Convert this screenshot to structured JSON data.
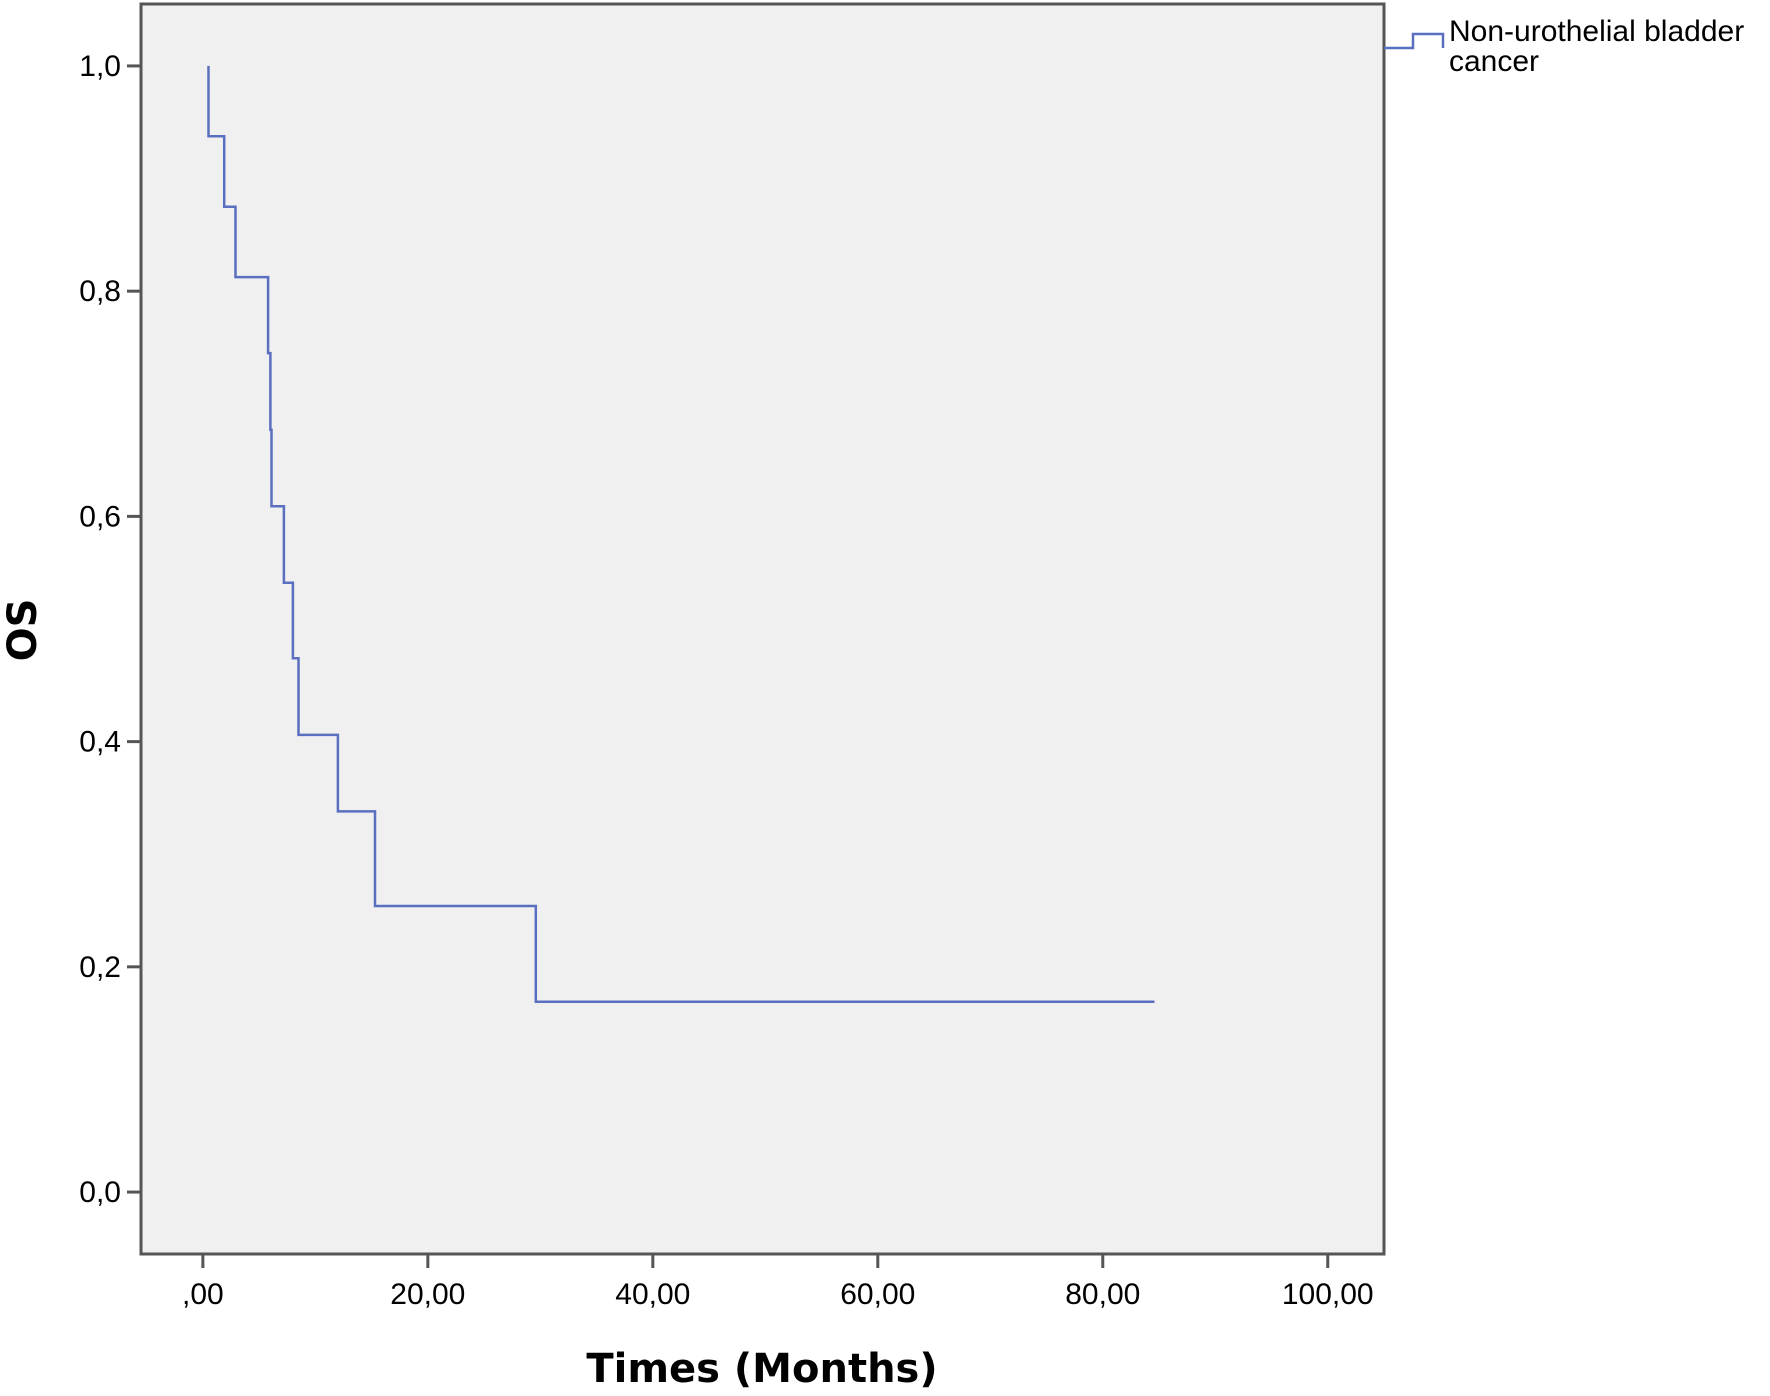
{
  "chart_data": {
    "type": "line",
    "subtype": "kaplan-meier-step",
    "xlabel": "Times (Months)",
    "ylabel": "OS",
    "xlim": [
      -5.5,
      105
    ],
    "ylim": [
      -0.055,
      1.055
    ],
    "x_ticks": [
      0,
      20,
      40,
      60,
      80,
      100
    ],
    "x_tick_labels": [
      ",00",
      "20,00",
      "40,00",
      "60,00",
      "80,00",
      "100,00"
    ],
    "y_ticks": [
      0,
      0.2,
      0.4,
      0.6,
      0.8,
      1.0
    ],
    "y_tick_labels": [
      "0,0",
      "0,2",
      "0,4",
      "0,6",
      "0,8",
      "1,0"
    ],
    "grid": false,
    "legend_position": "top-right, outside plot",
    "plot_background": "#f0f0f0",
    "series": [
      {
        "name": "Non-urothelial bladder cancer",
        "color": "#5a6fbf",
        "x": [
          0.5,
          0.5,
          1.9,
          1.9,
          2.9,
          2.9,
          5.8,
          5.8,
          6.0,
          6.0,
          6.1,
          6.1,
          7.2,
          7.2,
          8.0,
          8.0,
          8.5,
          8.5,
          12.0,
          12.0,
          15.3,
          15.3,
          29.6,
          29.6,
          84.6
        ],
        "y": [
          1.0,
          0.9375,
          0.9375,
          0.875,
          0.875,
          0.8125,
          0.8125,
          0.745,
          0.745,
          0.677,
          0.677,
          0.609,
          0.609,
          0.541,
          0.541,
          0.474,
          0.474,
          0.406,
          0.406,
          0.338,
          0.338,
          0.254,
          0.254,
          0.169,
          0.169
        ]
      }
    ]
  },
  "legend": {
    "line1": "Non-urothelial bladder",
    "line2": "cancer"
  }
}
